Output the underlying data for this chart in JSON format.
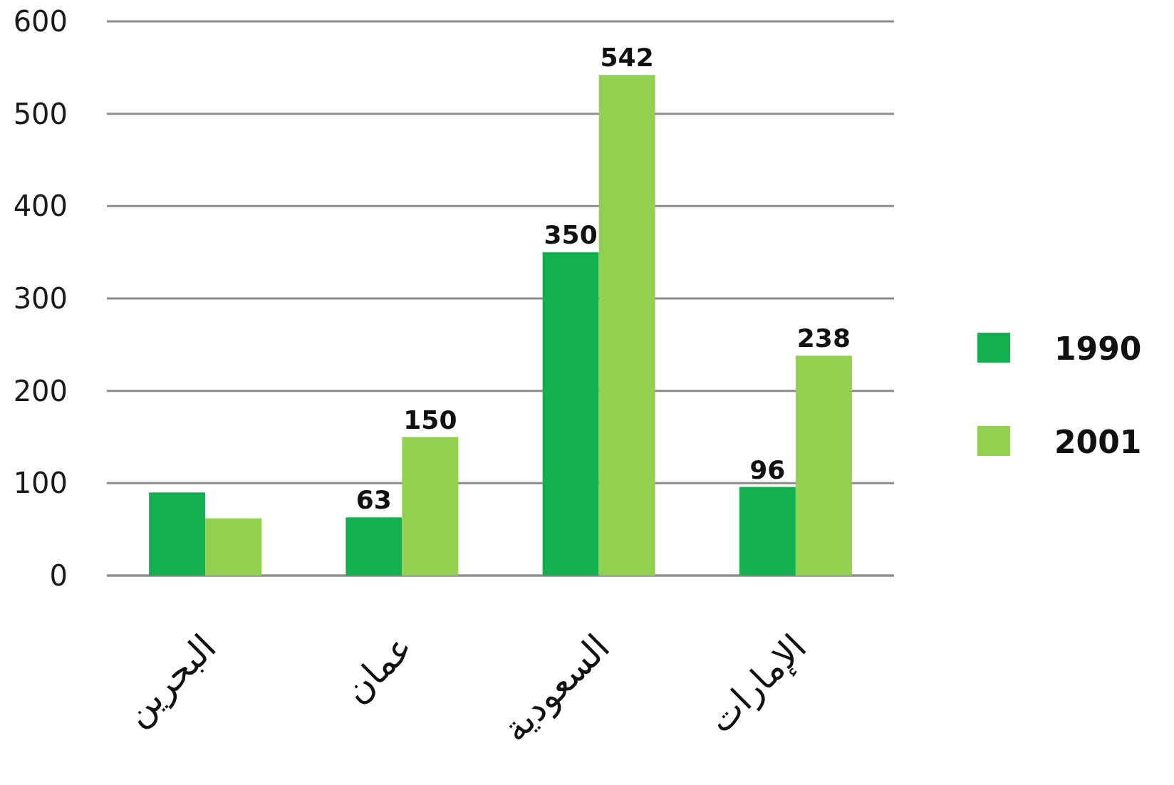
{
  "chart_data": {
    "type": "bar",
    "categories": [
      "البحرين",
      "عمان",
      "السعودية",
      "الإمارات"
    ],
    "series": [
      {
        "name": "1990",
        "color": "#13b050",
        "values": [
          90,
          63,
          350,
          96
        ],
        "value_labels": [
          null,
          "63",
          "350",
          "96"
        ]
      },
      {
        "name": "2001",
        "color": "#92d050",
        "values": [
          62,
          150,
          542,
          238
        ],
        "value_labels": [
          null,
          "150",
          "542",
          "238"
        ]
      }
    ],
    "ylim": [
      0,
      600
    ],
    "yticks": [
      0,
      100,
      200,
      300,
      400,
      500,
      600
    ],
    "grid": "y",
    "legend": "right"
  }
}
